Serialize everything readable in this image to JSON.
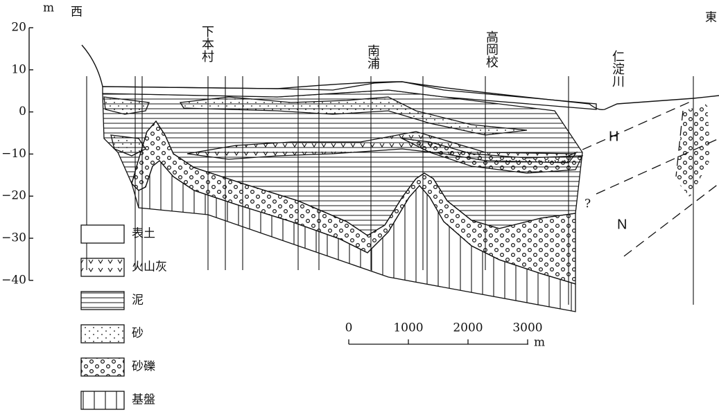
{
  "header": {
    "unit": "m",
    "west": "西",
    "east": "東"
  },
  "axis": {
    "ticks": [
      "20",
      "10",
      "0",
      "−10",
      "−20",
      "−30",
      "−40"
    ]
  },
  "sites": [
    {
      "label": "下本村"
    },
    {
      "label": "南浦"
    },
    {
      "label": "高岡校"
    },
    {
      "label": "仁淀川"
    }
  ],
  "zones": [
    "H",
    "N"
  ],
  "query": "?",
  "legend": [
    "表土",
    "火山灰",
    "泥",
    "砂",
    "砂礫",
    "基盤"
  ],
  "scale": {
    "ticks": [
      "0",
      "1000",
      "2000",
      "3000"
    ],
    "unit": "m"
  }
}
